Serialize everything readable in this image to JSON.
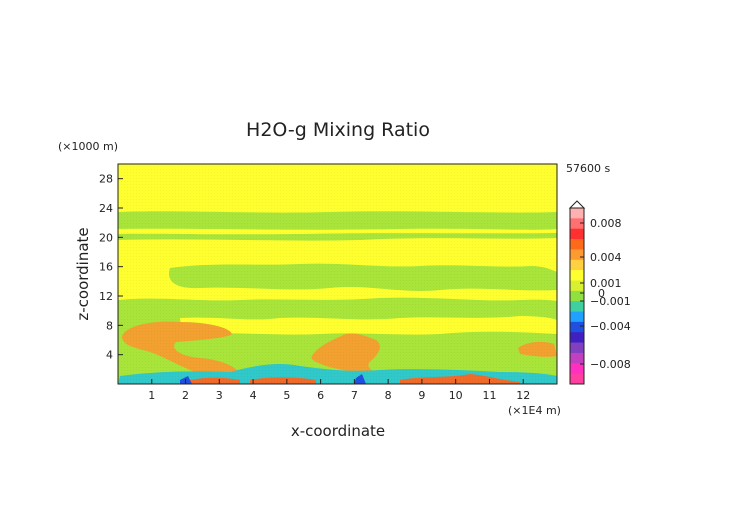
{
  "chart_data": {
    "type": "heatmap",
    "title": "H2O-g Mixing Ratio",
    "xlabel": "x-coordinate",
    "ylabel": "z-coordinate",
    "x_unit": "(×1E4 m)",
    "y_unit": "(×1000 m)",
    "time_label": "57600 s",
    "xlim": [
      0,
      13
    ],
    "ylim": [
      0,
      30
    ],
    "x_ticks": [
      "1",
      "2",
      "3",
      "4",
      "5",
      "6",
      "7",
      "8",
      "9",
      "10",
      "11",
      "12"
    ],
    "y_ticks": [
      "4",
      "8",
      "12",
      "16",
      "20",
      "24",
      "28"
    ],
    "colorbar": {
      "labels": [
        "0.008",
        "0.004",
        "0.001",
        "0",
        "−0.001",
        "−0.004",
        "−0.008"
      ],
      "colors": [
        "#ffb0b0",
        "#ff7070",
        "#ff3030",
        "#ff6a1a",
        "#ff9a30",
        "#ffd040",
        "#ffff30",
        "#d8f030",
        "#90e040",
        "#40d0a0",
        "#20a0ff",
        "#2050e0",
        "#4020c0",
        "#8040c0",
        "#c040c0",
        "#ff30c0",
        "#ff40a0"
      ]
    },
    "regions": [
      {
        "level": "0.001+",
        "color": "#ffff30",
        "x": [
          0,
          13
        ],
        "z": [
          23,
          30
        ]
      },
      {
        "level": "0 to 0.001",
        "color": "#a8e43a",
        "x": [
          0,
          13
        ],
        "z": [
          18,
          23
        ]
      },
      {
        "level": "0.001+",
        "color": "#ffff30",
        "x": [
          0,
          13
        ],
        "z": [
          9,
          18
        ]
      },
      {
        "level": "0 to 0.001",
        "color": "#a8e43a",
        "x": [
          0,
          13
        ],
        "z": [
          0,
          9
        ]
      },
      {
        "level": "0.001 to 0.004",
        "color": "#f2a030",
        "x": [
          0.3,
          3.5
        ],
        "z": [
          3,
          7.5
        ]
      },
      {
        "level": "0.001 to 0.004",
        "color": "#f2a030",
        "x": [
          5.8,
          7.5
        ],
        "z": [
          3,
          7
        ]
      },
      {
        "level": "−0.001 to −0.004",
        "color": "#30c8c8",
        "x": [
          0.5,
          12
        ],
        "z": [
          0,
          3
        ]
      }
    ]
  }
}
